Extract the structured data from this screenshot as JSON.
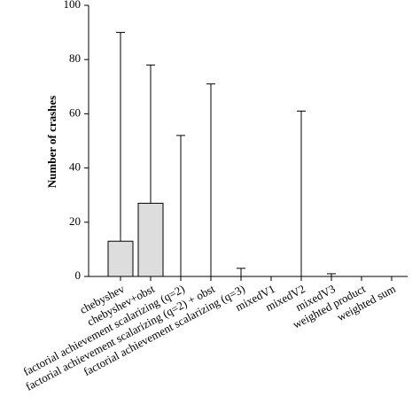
{
  "chart_data": {
    "type": "bar",
    "y_label": "Number of crashes",
    "categories": [
      "chebyshev",
      "chebyshev+obst",
      "factorial achievement scalarizing (q=2)",
      "factorial achievement scalarizing (q=2) + obst",
      "factorial achievement scalarizing (q=3)",
      "mixedV1",
      "mixedV2",
      "mixedV3",
      "weighted product",
      "weighted sum"
    ],
    "values": [
      13,
      27,
      0,
      0,
      0,
      0,
      0,
      0,
      0,
      0
    ],
    "errors": [
      77,
      51,
      52,
      71,
      3,
      0,
      61,
      1,
      0,
      0
    ],
    "color": "#dddddd",
    "ylim": [
      0,
      100
    ],
    "yticks": [
      0,
      20,
      40,
      60,
      80,
      100
    ]
  }
}
